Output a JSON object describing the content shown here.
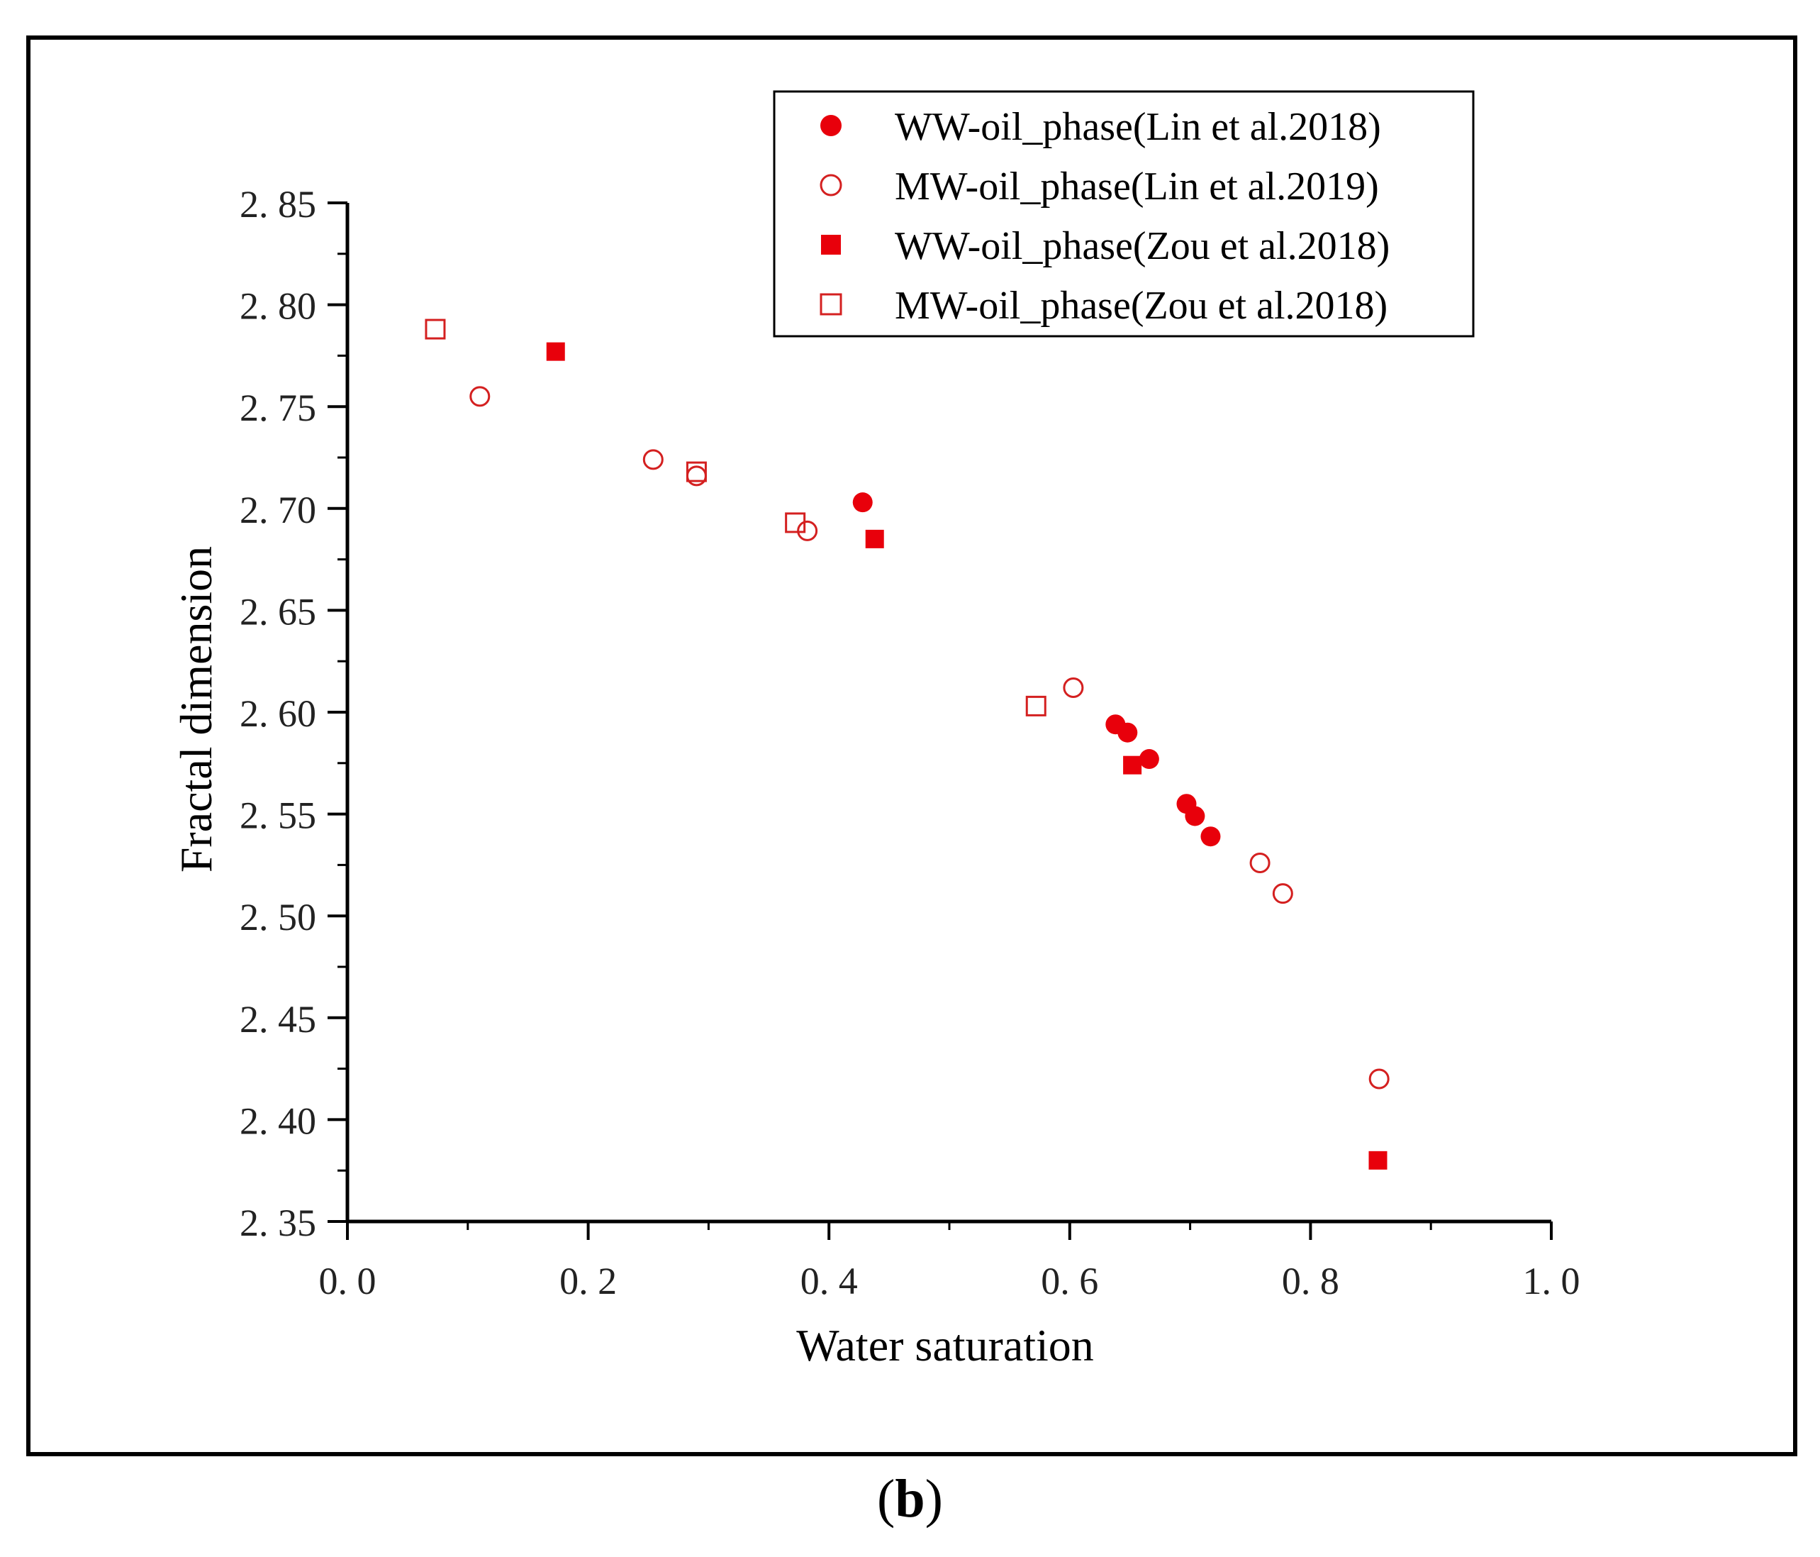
{
  "chart_data": {
    "type": "scatter",
    "title": "",
    "xlabel": "Water saturation",
    "ylabel": "Fractal dimension",
    "xlim": [
      0.0,
      1.0
    ],
    "ylim": [
      2.35,
      2.85
    ],
    "x_ticks": [
      0.0,
      0.2,
      0.4,
      0.6,
      0.8,
      1.0
    ],
    "x_tick_labels": [
      "0. 0",
      "0. 2",
      "0. 4",
      "0. 6",
      "0. 8",
      "1. 0"
    ],
    "y_ticks": [
      2.35,
      2.4,
      2.45,
      2.5,
      2.55,
      2.6,
      2.65,
      2.7,
      2.75,
      2.8,
      2.85
    ],
    "y_tick_labels": [
      "2. 35",
      "2. 40",
      "2. 45",
      "2. 50",
      "2. 55",
      "2. 60",
      "2. 65",
      "2. 70",
      "2. 75",
      "2. 80",
      "2. 85"
    ],
    "grid": false,
    "legend_position": "top-right",
    "series": [
      {
        "name": "WW-oil_phase(Lin et al.2018)",
        "marker": "circle-filled",
        "color": "#e8000b",
        "points": [
          {
            "x": 0.428,
            "y": 2.703
          },
          {
            "x": 0.638,
            "y": 2.594
          },
          {
            "x": 0.648,
            "y": 2.59
          },
          {
            "x": 0.666,
            "y": 2.577
          },
          {
            "x": 0.697,
            "y": 2.555
          },
          {
            "x": 0.704,
            "y": 2.549
          },
          {
            "x": 0.717,
            "y": 2.539
          }
        ]
      },
      {
        "name": "MW-oil_phase(Lin et al.2019)",
        "marker": "circle-open",
        "color": "#d42020",
        "points": [
          {
            "x": 0.11,
            "y": 2.755
          },
          {
            "x": 0.254,
            "y": 2.724
          },
          {
            "x": 0.29,
            "y": 2.716
          },
          {
            "x": 0.382,
            "y": 2.689
          },
          {
            "x": 0.603,
            "y": 2.612
          },
          {
            "x": 0.758,
            "y": 2.526
          },
          {
            "x": 0.777,
            "y": 2.511
          },
          {
            "x": 0.857,
            "y": 2.42
          }
        ]
      },
      {
        "name": "WW-oil_phase(Zou et al.2018)",
        "marker": "square-filled",
        "color": "#e8000b",
        "points": [
          {
            "x": 0.173,
            "y": 2.777
          },
          {
            "x": 0.438,
            "y": 2.685
          },
          {
            "x": 0.652,
            "y": 2.574
          },
          {
            "x": 0.856,
            "y": 2.38
          }
        ]
      },
      {
        "name": "MW-oil_phase(Zou et al.2018)",
        "marker": "square-open",
        "color": "#d42020",
        "points": [
          {
            "x": 0.073,
            "y": 2.788
          },
          {
            "x": 0.29,
            "y": 2.718
          },
          {
            "x": 0.372,
            "y": 2.693
          },
          {
            "x": 0.572,
            "y": 2.603
          }
        ]
      }
    ]
  },
  "caption": {
    "open": "(",
    "letter": "b",
    "close": ")"
  }
}
